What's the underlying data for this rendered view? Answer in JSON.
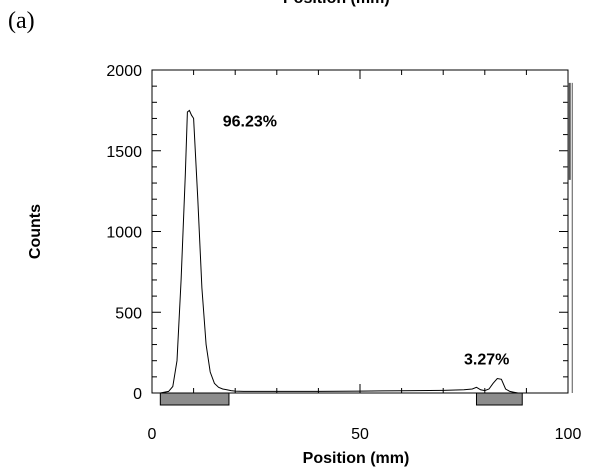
{
  "panel_label": "(a)",
  "top_partial_title": "Position (mm)",
  "chart_data": {
    "type": "line",
    "xlabel": "Position (mm)",
    "ylabel": "Counts",
    "xlim": [
      0,
      100
    ],
    "ylim": [
      0,
      2000
    ],
    "xticks": [
      0,
      50,
      100
    ],
    "yticks": [
      0,
      500,
      1000,
      1500,
      2000
    ],
    "grid": false,
    "series": [
      {
        "values_x": [
          2,
          4,
          5,
          6,
          7,
          8,
          8.5,
          9,
          9.5,
          10,
          11,
          12,
          13,
          14,
          15,
          16,
          17,
          18,
          19,
          20,
          22,
          25,
          30,
          40,
          50,
          60,
          70,
          75,
          77,
          78,
          79,
          80,
          81,
          82,
          83,
          84,
          85,
          86,
          87,
          88,
          90,
          95,
          98
        ],
        "values_y": [
          0,
          10,
          40,
          200,
          700,
          1350,
          1740,
          1750,
          1720,
          1700,
          1200,
          650,
          300,
          130,
          60,
          35,
          25,
          20,
          15,
          12,
          10,
          10,
          10,
          10,
          12,
          14,
          16,
          20,
          25,
          35,
          20,
          15,
          25,
          60,
          90,
          85,
          25,
          10,
          5,
          0,
          0,
          0,
          0
        ]
      }
    ],
    "annotations": [
      {
        "text": "96.23%",
        "x": 17,
        "y": 1650
      },
      {
        "text": "3.27%",
        "x": 75,
        "y": 175
      }
    ],
    "regions": [
      {
        "x_start": 2,
        "x_end": 18.5
      },
      {
        "x_start": 78,
        "x_end": 89
      }
    ],
    "marker_line": {
      "x": 100.3,
      "y_top": 1920,
      "y_bottom": 1320
    }
  }
}
